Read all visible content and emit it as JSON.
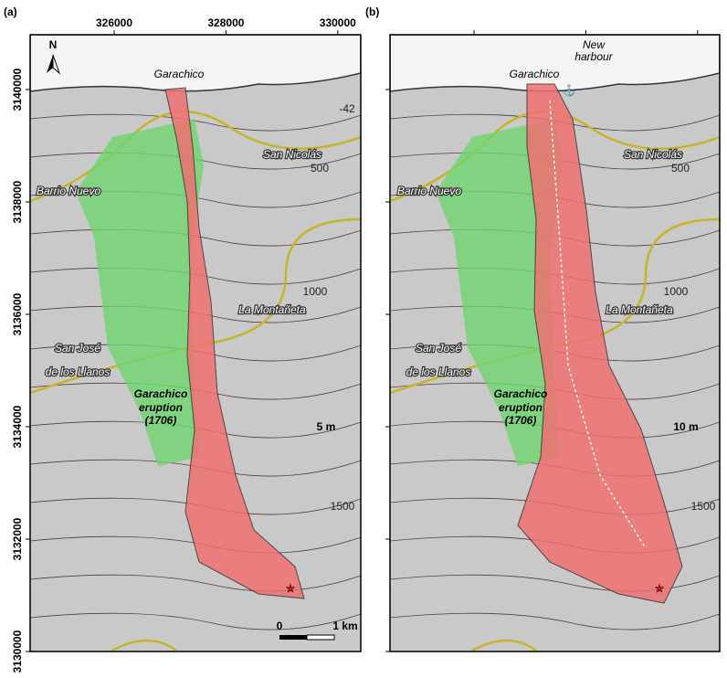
{
  "axes": {
    "x_ticks": [
      326000,
      328000,
      330000
    ],
    "y_ticks": [
      3140000,
      3138000,
      3136000,
      3134000,
      3132000,
      3130000
    ]
  },
  "panels": [
    {
      "label": "(a)",
      "north": "N",
      "places": [
        "Garachico",
        "San Nicolás",
        "Barrio Nuevo",
        "La Montañeta",
        "San José",
        "de los Llanos"
      ],
      "eruption": [
        "Garachico",
        "eruption",
        "(1706)"
      ],
      "thickness": "5 m",
      "contours": [
        "-42",
        "500",
        "1000",
        "1500"
      ],
      "scale": [
        "0",
        "1 km"
      ]
    },
    {
      "label": "(b)",
      "places": [
        "Garachico",
        "San Nicolás",
        "Barrio Nuevo",
        "La Montañeta",
        "San José",
        "de los Llanos"
      ],
      "harbour": [
        "New",
        "harbour"
      ],
      "eruption": [
        "Garachico",
        "eruption",
        "(1706)"
      ],
      "thickness": "10 m",
      "contours": [
        "500",
        "1000",
        "1500"
      ]
    }
  ]
}
